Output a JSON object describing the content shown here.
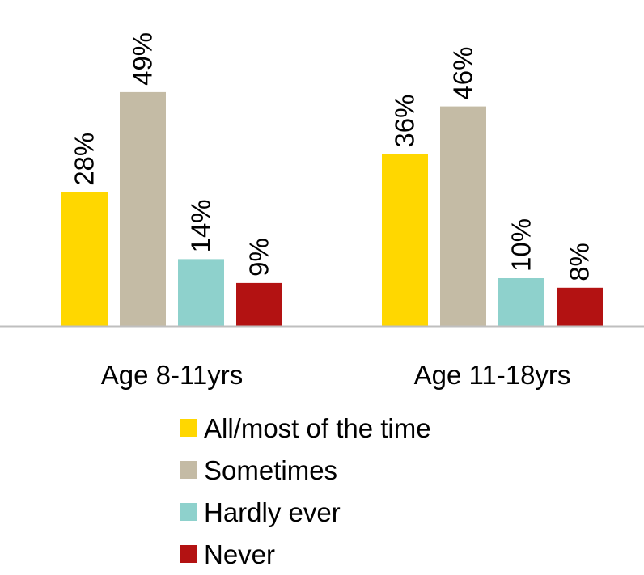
{
  "chart_data": {
    "type": "bar",
    "title": "",
    "xlabel": "",
    "ylabel": "",
    "ylim": [
      0,
      55
    ],
    "grid": false,
    "legend_position": "bottom",
    "categories": [
      "Age 8-11yrs",
      "Age 11-18yrs"
    ],
    "series": [
      {
        "name": "All/most of the time",
        "values": [
          28,
          36
        ],
        "labels": [
          "28%",
          "36%"
        ],
        "color": "#FFD700"
      },
      {
        "name": "Sometimes",
        "values": [
          49,
          46
        ],
        "labels": [
          "49%",
          "46%"
        ],
        "color": "#C4BBA5"
      },
      {
        "name": "Hardly ever",
        "values": [
          14,
          10
        ],
        "labels": [
          "14%",
          "10%"
        ],
        "color": "#8ED1CC"
      },
      {
        "name": "Never",
        "values": [
          9,
          8
        ],
        "labels": [
          "9%",
          "8%"
        ],
        "color": "#B31212"
      }
    ]
  }
}
